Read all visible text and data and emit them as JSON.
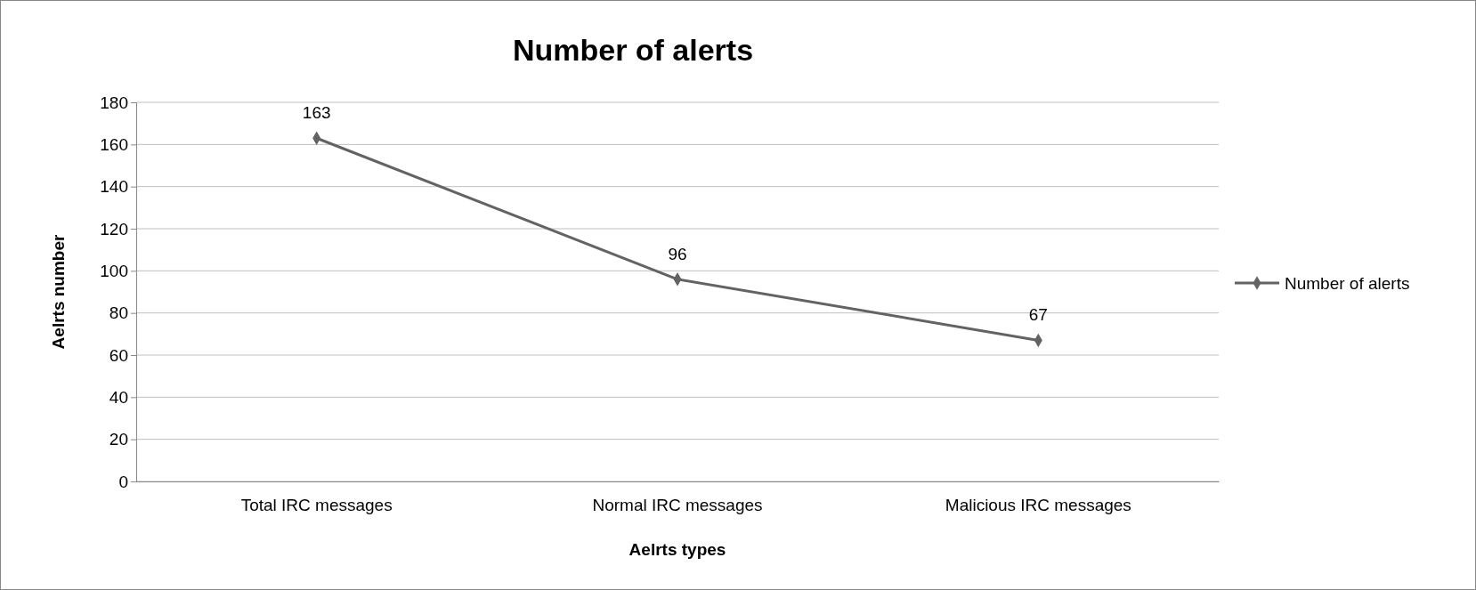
{
  "chart_data": {
    "type": "line",
    "title": "Number of alerts",
    "xlabel": "Aelrts types",
    "ylabel": "Aelrts number",
    "categories": [
      "Total IRC messages",
      "Normal IRC messages",
      "Malicious IRC messages"
    ],
    "series": [
      {
        "name": "Number of alerts",
        "color": "#636363",
        "values": [
          163,
          96,
          67
        ]
      }
    ],
    "ylim": [
      0,
      180
    ],
    "yticks": [
      0,
      20,
      40,
      60,
      80,
      100,
      120,
      140,
      160,
      180
    ],
    "grid": "y",
    "legend": "right",
    "marker": "diamond",
    "line_style": "solid",
    "data_labels": true
  }
}
